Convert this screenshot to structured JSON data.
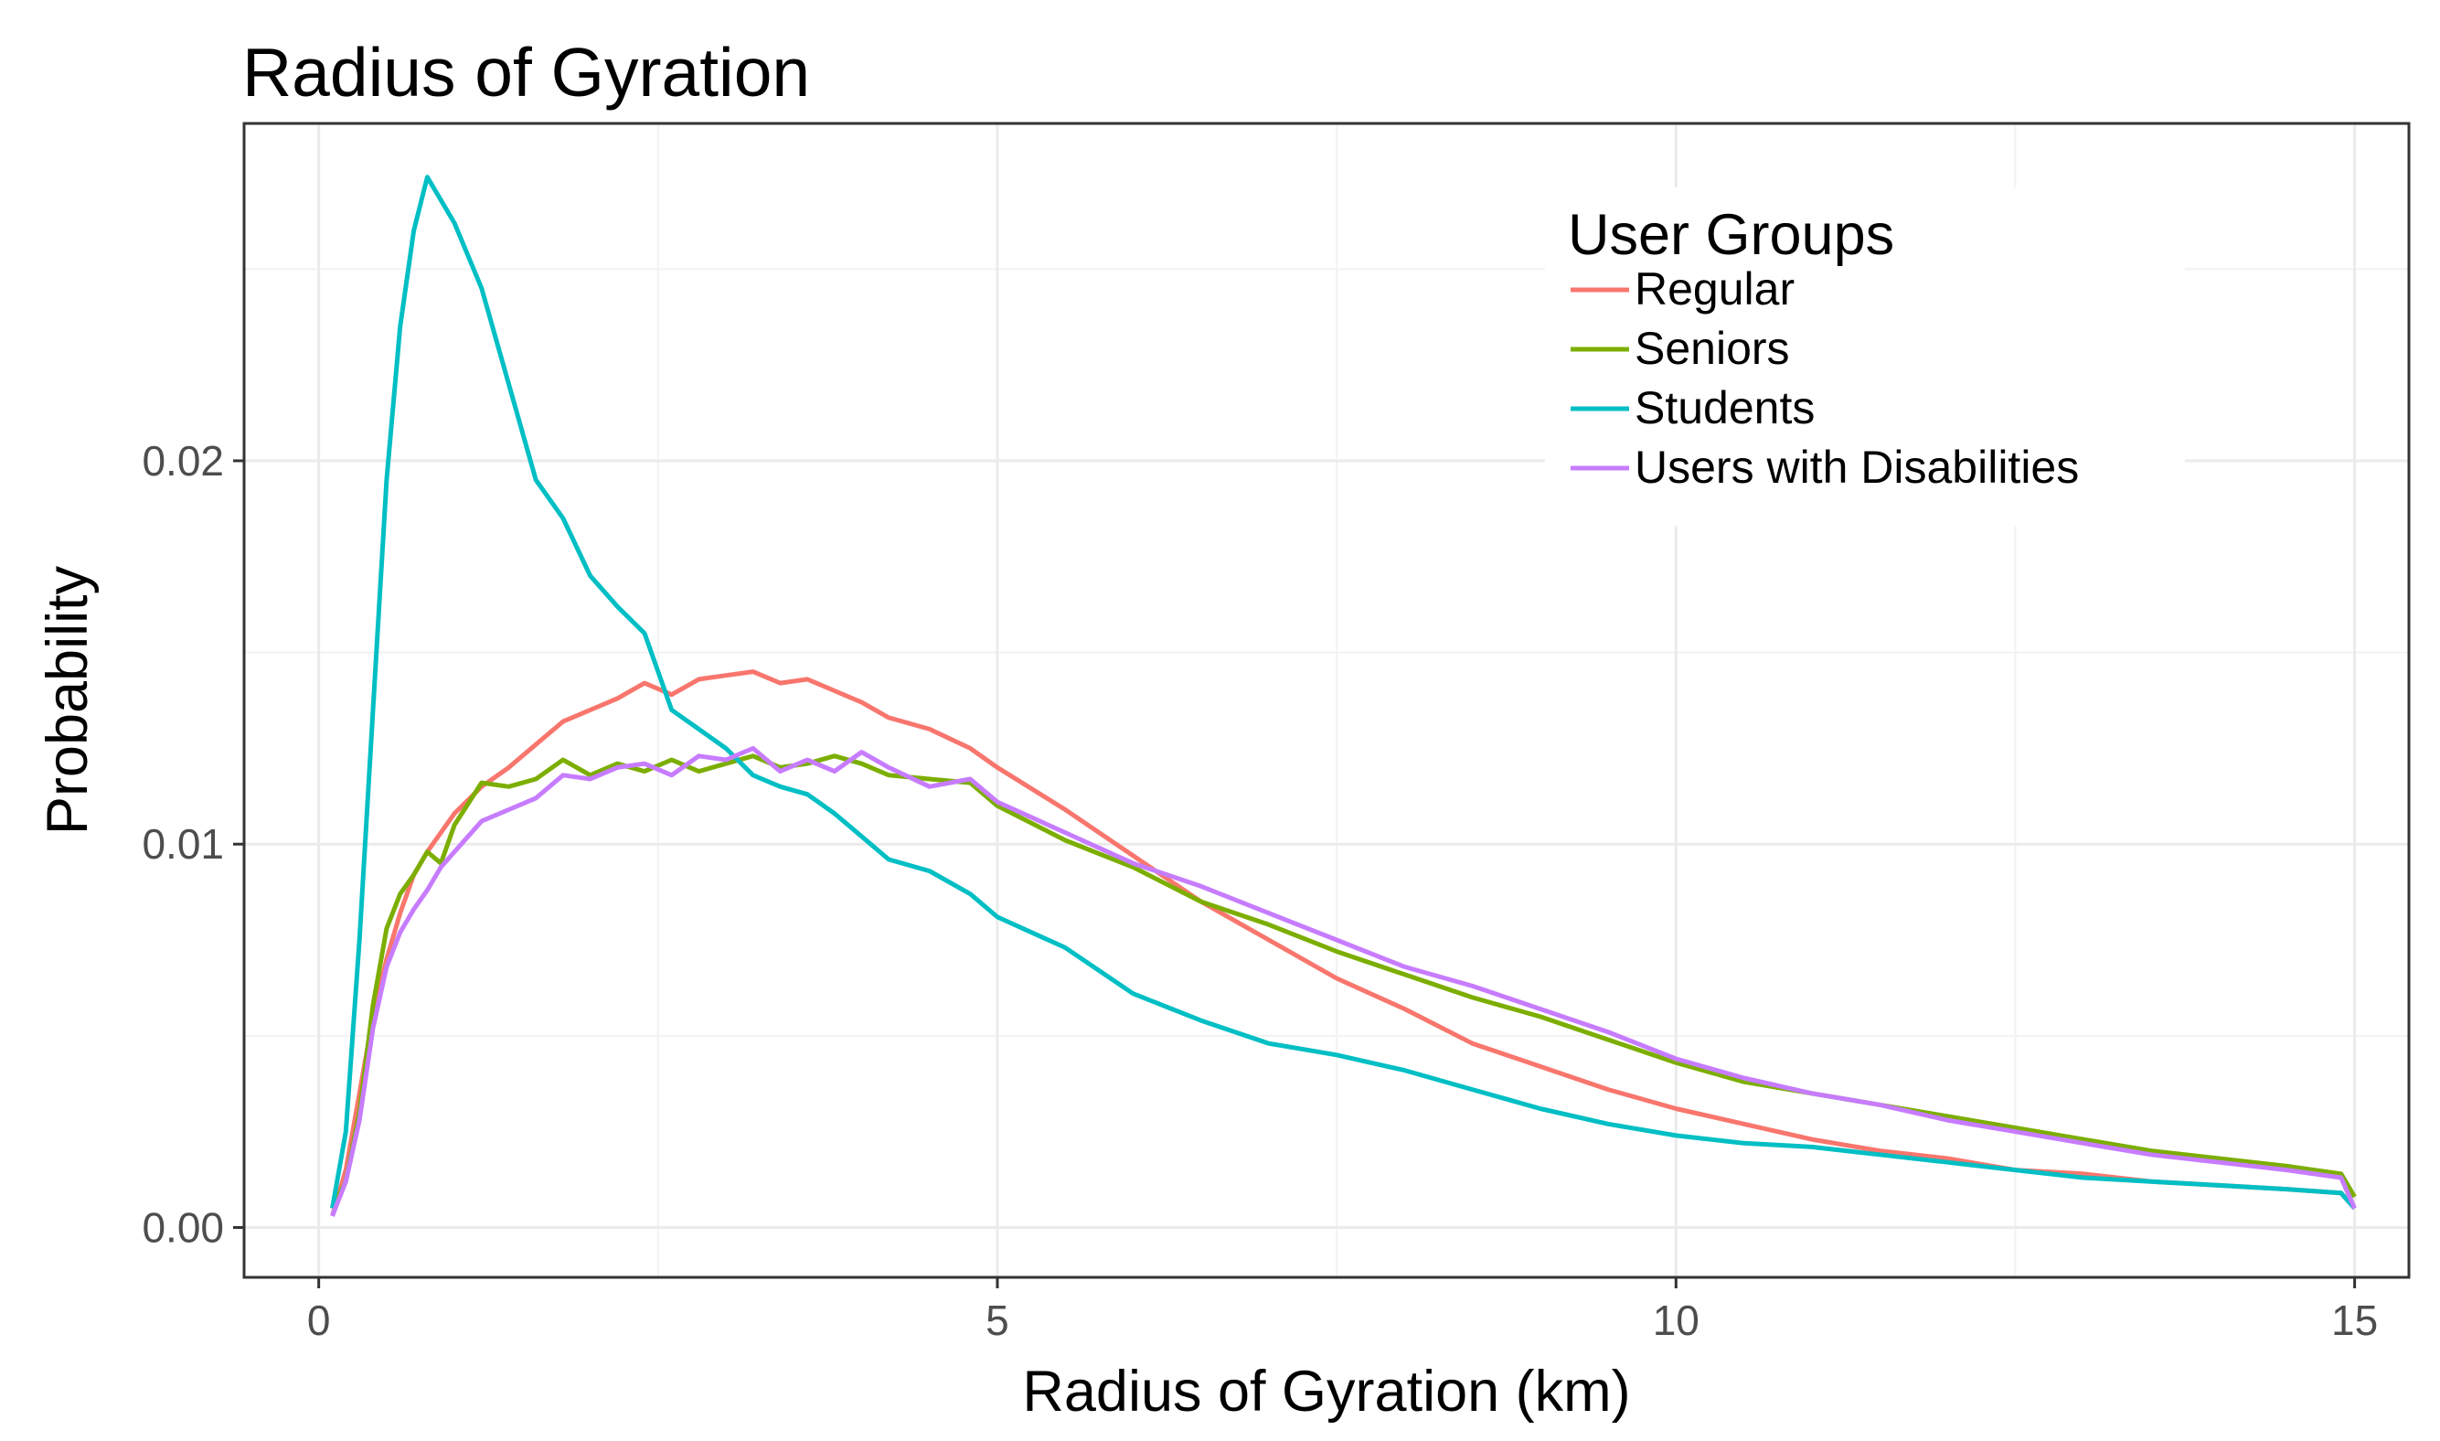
{
  "chart_data": {
    "type": "line",
    "title": "Radius of Gyration",
    "xlabel": "Radius of Gyration (km)",
    "ylabel": "Probability",
    "xlim": [
      -0.55,
      15.4
    ],
    "ylim": [
      -0.0013,
      0.0288
    ],
    "x_ticks": [
      0,
      5,
      10,
      15
    ],
    "x_tick_labels": [
      "0",
      "5",
      "10",
      "15"
    ],
    "y_ticks": [
      0,
      0.01,
      0.02
    ],
    "y_tick_labels": [
      "0.00",
      "0.01",
      "0.02"
    ],
    "grid": true,
    "legend_title": "User Groups",
    "legend_position": "top-right",
    "series": [
      {
        "name": "Regular",
        "color": "#F8766D",
        "x": [
          0.1,
          0.2,
          0.3,
          0.4,
          0.5,
          0.6,
          0.7,
          0.8,
          0.9,
          1.0,
          1.2,
          1.4,
          1.6,
          1.8,
          2.0,
          2.2,
          2.4,
          2.6,
          2.8,
          3.0,
          3.2,
          3.4,
          3.6,
          3.8,
          4.0,
          4.2,
          4.5,
          4.8,
          5.0,
          5.5,
          6.0,
          6.5,
          7.0,
          7.5,
          8.0,
          8.5,
          9.0,
          9.5,
          10.0,
          10.5,
          11.0,
          11.5,
          12.0,
          12.5,
          13.0,
          13.5,
          14.0,
          14.5,
          14.9,
          15.0
        ],
        "y": [
          0.0003,
          0.0015,
          0.0035,
          0.0055,
          0.007,
          0.0082,
          0.0092,
          0.0098,
          0.0103,
          0.0108,
          0.0115,
          0.012,
          0.0126,
          0.0132,
          0.0135,
          0.0138,
          0.0142,
          0.0139,
          0.0143,
          0.0144,
          0.0145,
          0.0142,
          0.0143,
          0.014,
          0.0137,
          0.0133,
          0.013,
          0.0125,
          0.012,
          0.0109,
          0.0097,
          0.0085,
          0.0075,
          0.0065,
          0.0057,
          0.0048,
          0.0042,
          0.0036,
          0.0031,
          0.0027,
          0.0023,
          0.002,
          0.0018,
          0.0015,
          0.0014,
          0.0012,
          0.0011,
          0.001,
          0.0009,
          0.0005
        ]
      },
      {
        "name": "Seniors",
        "color": "#7CAE00",
        "x": [
          0.1,
          0.2,
          0.3,
          0.4,
          0.5,
          0.6,
          0.7,
          0.8,
          0.9,
          1.0,
          1.2,
          1.4,
          1.6,
          1.8,
          2.0,
          2.2,
          2.4,
          2.6,
          2.8,
          3.0,
          3.2,
          3.4,
          3.6,
          3.8,
          4.0,
          4.2,
          4.5,
          4.8,
          5.0,
          5.5,
          6.0,
          6.5,
          7.0,
          7.5,
          8.0,
          8.5,
          9.0,
          9.5,
          10.0,
          10.5,
          11.0,
          11.5,
          12.0,
          12.5,
          13.0,
          13.5,
          14.0,
          14.5,
          14.9,
          15.0
        ],
        "y": [
          0.0005,
          0.0012,
          0.003,
          0.0058,
          0.0078,
          0.0087,
          0.0092,
          0.0098,
          0.0095,
          0.0105,
          0.0116,
          0.0115,
          0.0117,
          0.0122,
          0.0118,
          0.0121,
          0.0119,
          0.0122,
          0.0119,
          0.0121,
          0.0123,
          0.012,
          0.0121,
          0.0123,
          0.0121,
          0.0118,
          0.0117,
          0.0116,
          0.011,
          0.0101,
          0.0094,
          0.0085,
          0.0079,
          0.0072,
          0.0066,
          0.006,
          0.0055,
          0.0049,
          0.0043,
          0.0038,
          0.0035,
          0.0032,
          0.0029,
          0.0026,
          0.0023,
          0.002,
          0.0018,
          0.0016,
          0.0014,
          0.0008
        ]
      },
      {
        "name": "Students",
        "color": "#00BFC4",
        "x": [
          0.1,
          0.2,
          0.3,
          0.4,
          0.5,
          0.6,
          0.7,
          0.8,
          0.9,
          1.0,
          1.2,
          1.4,
          1.6,
          1.8,
          2.0,
          2.2,
          2.4,
          2.6,
          2.8,
          3.0,
          3.2,
          3.4,
          3.6,
          3.8,
          4.0,
          4.2,
          4.5,
          4.8,
          5.0,
          5.5,
          6.0,
          6.5,
          7.0,
          7.5,
          8.0,
          8.5,
          9.0,
          9.5,
          10.0,
          10.5,
          11.0,
          11.5,
          12.0,
          12.5,
          13.0,
          13.5,
          14.0,
          14.5,
          14.9,
          15.0
        ],
        "y": [
          0.0005,
          0.0025,
          0.0075,
          0.0135,
          0.0195,
          0.0235,
          0.026,
          0.0274,
          0.0268,
          0.0262,
          0.0245,
          0.022,
          0.0195,
          0.0185,
          0.017,
          0.0162,
          0.0155,
          0.0135,
          0.013,
          0.0125,
          0.0118,
          0.0115,
          0.0113,
          0.0108,
          0.0102,
          0.0096,
          0.0093,
          0.0087,
          0.0081,
          0.0073,
          0.0061,
          0.0054,
          0.0048,
          0.0045,
          0.0041,
          0.0036,
          0.0031,
          0.0027,
          0.0024,
          0.0022,
          0.0021,
          0.0019,
          0.0017,
          0.0015,
          0.0013,
          0.0012,
          0.0011,
          0.001,
          0.0009,
          0.0005
        ]
      },
      {
        "name": "Users with Disabilities",
        "color": "#C77CFF",
        "x": [
          0.1,
          0.2,
          0.3,
          0.4,
          0.5,
          0.6,
          0.7,
          0.8,
          0.9,
          1.0,
          1.2,
          1.4,
          1.6,
          1.8,
          2.0,
          2.2,
          2.4,
          2.6,
          2.8,
          3.0,
          3.2,
          3.4,
          3.6,
          3.8,
          4.0,
          4.2,
          4.5,
          4.8,
          5.0,
          5.5,
          6.0,
          6.5,
          7.0,
          7.5,
          8.0,
          8.5,
          9.0,
          9.5,
          10.0,
          10.5,
          11.0,
          11.5,
          12.0,
          12.5,
          13.0,
          13.5,
          14.0,
          14.5,
          14.9,
          15.0
        ],
        "y": [
          0.0003,
          0.0012,
          0.0028,
          0.0052,
          0.0068,
          0.0077,
          0.0083,
          0.0088,
          0.0094,
          0.0098,
          0.0106,
          0.0109,
          0.0112,
          0.0118,
          0.0117,
          0.012,
          0.0121,
          0.0118,
          0.0123,
          0.0122,
          0.0125,
          0.0119,
          0.0122,
          0.0119,
          0.0124,
          0.012,
          0.0115,
          0.0117,
          0.0111,
          0.0103,
          0.0095,
          0.0089,
          0.0082,
          0.0075,
          0.0068,
          0.0063,
          0.0057,
          0.0051,
          0.0044,
          0.0039,
          0.0035,
          0.0032,
          0.0028,
          0.0025,
          0.0022,
          0.0019,
          0.0017,
          0.0015,
          0.0013,
          0.0005
        ]
      }
    ]
  }
}
